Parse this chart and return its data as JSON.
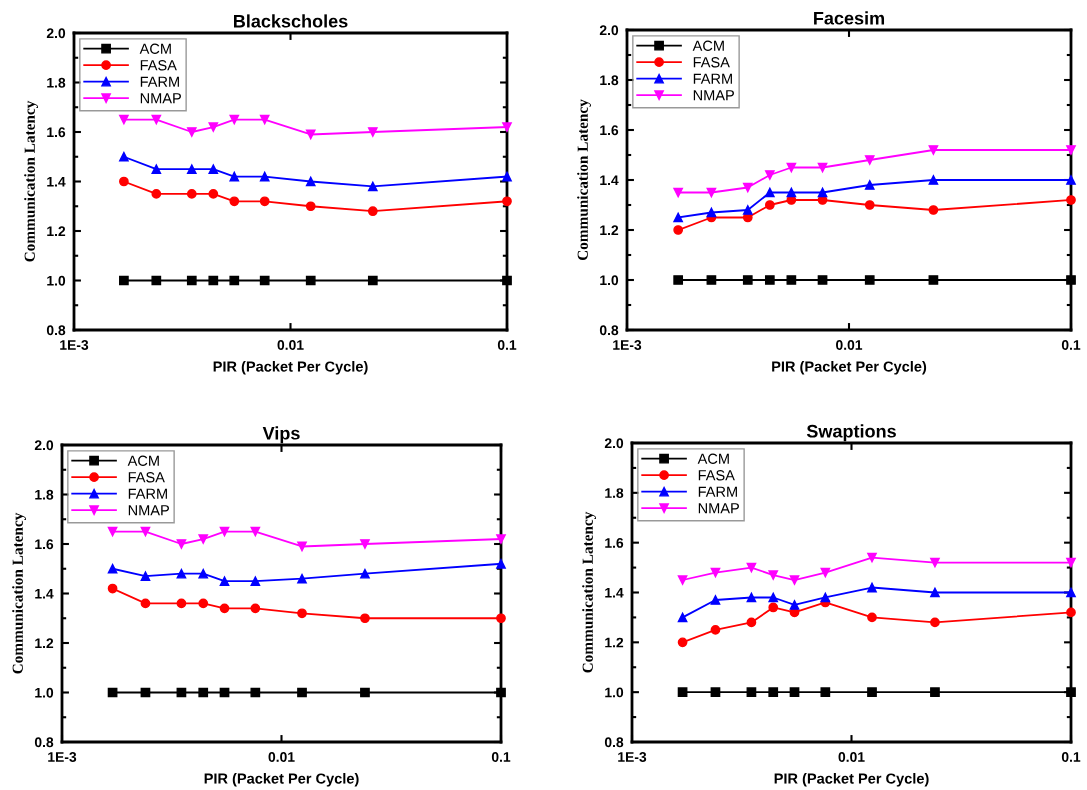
{
  "chart_data": [
    {
      "type": "line",
      "title": "Blackscholes",
      "xlabel": "PIR (Packet Per Cycle)",
      "ylabel": "Communication Latency",
      "log": "x",
      "legend": "top left",
      "grid": false,
      "xlim": [
        0.001,
        0.1
      ],
      "ylim": [
        0.8,
        2.0
      ],
      "xticks": [
        {
          "value": 0.001,
          "label": "1E-3"
        },
        {
          "value": 0.01,
          "label": "0.01"
        },
        {
          "value": 0.1,
          "label": "0.1"
        }
      ],
      "yticks": [
        {
          "value": 0.8,
          "label": "0.8"
        },
        {
          "value": 1.0,
          "label": "1.0"
        },
        1.2,
        1.4,
        1.6,
        1.8,
        {
          "value": 2.0,
          "label": "2.0"
        }
      ],
      "x": [
        0.0017,
        0.0024,
        0.0035,
        0.0044,
        0.0055,
        0.0076,
        0.0124,
        0.024,
        0.1
      ],
      "series": [
        {
          "name": "ACM",
          "color": "#000000",
          "marker": "square",
          "values": [
            1.0,
            1.0,
            1.0,
            1.0,
            1.0,
            1.0,
            1.0,
            1.0,
            1.0
          ]
        },
        {
          "name": "FASA",
          "color": "#ff0000",
          "marker": "circle",
          "values": [
            1.4,
            1.35,
            1.35,
            1.35,
            1.32,
            1.32,
            1.3,
            1.28,
            1.32
          ]
        },
        {
          "name": "FARM",
          "color": "#0000ff",
          "marker": "triangle",
          "values": [
            1.5,
            1.45,
            1.45,
            1.45,
            1.42,
            1.42,
            1.4,
            1.38,
            1.42
          ]
        },
        {
          "name": "NMAP",
          "color": "#ff00ff",
          "marker": "triangle_down",
          "values": [
            1.65,
            1.65,
            1.6,
            1.62,
            1.65,
            1.65,
            1.59,
            1.6,
            1.62
          ]
        }
      ]
    },
    {
      "type": "line",
      "title": "Facesim",
      "xlabel": "PIR (Packet Per Cycle)",
      "ylabel": "Communication Latency",
      "log": "x",
      "legend": "top left",
      "grid": false,
      "xlim": [
        0.001,
        0.1
      ],
      "ylim": [
        0.8,
        2.0
      ],
      "xticks": [
        {
          "value": 0.001,
          "label": "1E-3"
        },
        {
          "value": 0.01,
          "label": "0.01"
        },
        {
          "value": 0.1,
          "label": "0.1"
        }
      ],
      "yticks": [
        {
          "value": 0.8,
          "label": "0.8"
        },
        {
          "value": 1.0,
          "label": "1.0"
        },
        1.2,
        1.4,
        1.6,
        1.8,
        {
          "value": 2.0,
          "label": "2.0"
        }
      ],
      "x": [
        0.0017,
        0.0024,
        0.0035,
        0.0044,
        0.0055,
        0.0076,
        0.0124,
        0.024,
        0.1
      ],
      "series": [
        {
          "name": "ACM",
          "color": "#000000",
          "marker": "square",
          "values": [
            1.0,
            1.0,
            1.0,
            1.0,
            1.0,
            1.0,
            1.0,
            1.0,
            1.0
          ]
        },
        {
          "name": "FASA",
          "color": "#ff0000",
          "marker": "circle",
          "values": [
            1.2,
            1.25,
            1.25,
            1.3,
            1.32,
            1.32,
            1.3,
            1.28,
            1.32
          ]
        },
        {
          "name": "FARM",
          "color": "#0000ff",
          "marker": "triangle",
          "values": [
            1.25,
            1.27,
            1.28,
            1.35,
            1.35,
            1.35,
            1.38,
            1.4,
            1.4
          ]
        },
        {
          "name": "NMAP",
          "color": "#ff00ff",
          "marker": "triangle_down",
          "values": [
            1.35,
            1.35,
            1.37,
            1.42,
            1.45,
            1.45,
            1.48,
            1.52,
            1.52
          ]
        }
      ]
    },
    {
      "type": "line",
      "title": "Vips",
      "xlabel": "PIR (Packet Per Cycle)",
      "ylabel": "Communication Latency",
      "log": "x",
      "legend": "top left",
      "grid": false,
      "xlim": [
        0.001,
        0.1
      ],
      "ylim": [
        0.8,
        2.0
      ],
      "xticks": [
        {
          "value": 0.001,
          "label": "1E-3"
        },
        {
          "value": 0.01,
          "label": "0.01"
        },
        {
          "value": 0.1,
          "label": "0.1"
        }
      ],
      "yticks": [
        {
          "value": 0.8,
          "label": "0.8"
        },
        {
          "value": 1.0,
          "label": "1.0"
        },
        1.2,
        1.4,
        1.6,
        1.8,
        {
          "value": 2.0,
          "label": "2.0"
        }
      ],
      "x": [
        0.0017,
        0.0024,
        0.0035,
        0.0044,
        0.0055,
        0.0076,
        0.0124,
        0.024,
        0.1
      ],
      "series": [
        {
          "name": "ACM",
          "color": "#000000",
          "marker": "square",
          "values": [
            1.0,
            1.0,
            1.0,
            1.0,
            1.0,
            1.0,
            1.0,
            1.0,
            1.0
          ]
        },
        {
          "name": "FASA",
          "color": "#ff0000",
          "marker": "circle",
          "values": [
            1.42,
            1.36,
            1.36,
            1.36,
            1.34,
            1.34,
            1.32,
            1.3,
            1.3
          ]
        },
        {
          "name": "FARM",
          "color": "#0000ff",
          "marker": "triangle",
          "values": [
            1.5,
            1.47,
            1.48,
            1.48,
            1.45,
            1.45,
            1.46,
            1.48,
            1.52
          ]
        },
        {
          "name": "NMAP",
          "color": "#ff00ff",
          "marker": "triangle_down",
          "values": [
            1.65,
            1.65,
            1.6,
            1.62,
            1.65,
            1.65,
            1.59,
            1.6,
            1.62
          ]
        }
      ]
    },
    {
      "type": "line",
      "title": "Swaptions",
      "xlabel": "PIR (Packet Per Cycle)",
      "ylabel": "Communication Latency",
      "log": "x",
      "legend": "top left",
      "grid": false,
      "xlim": [
        0.001,
        0.1
      ],
      "ylim": [
        0.8,
        2.0
      ],
      "xticks": [
        {
          "value": 0.001,
          "label": "1E-3"
        },
        {
          "value": 0.01,
          "label": "0.01"
        },
        {
          "value": 0.1,
          "label": "0.1"
        }
      ],
      "yticks": [
        {
          "value": 0.8,
          "label": "0.8"
        },
        {
          "value": 1.0,
          "label": "1.0"
        },
        1.2,
        1.4,
        1.6,
        1.8,
        {
          "value": 2.0,
          "label": "2.0"
        }
      ],
      "x": [
        0.0017,
        0.0024,
        0.0035,
        0.0044,
        0.0055,
        0.0076,
        0.0124,
        0.024,
        0.1
      ],
      "series": [
        {
          "name": "ACM",
          "color": "#000000",
          "marker": "square",
          "values": [
            1.0,
            1.0,
            1.0,
            1.0,
            1.0,
            1.0,
            1.0,
            1.0,
            1.0
          ]
        },
        {
          "name": "FASA",
          "color": "#ff0000",
          "marker": "circle",
          "values": [
            1.2,
            1.25,
            1.28,
            1.34,
            1.32,
            1.36,
            1.3,
            1.28,
            1.32
          ]
        },
        {
          "name": "FARM",
          "color": "#0000ff",
          "marker": "triangle",
          "values": [
            1.3,
            1.37,
            1.38,
            1.38,
            1.35,
            1.38,
            1.42,
            1.4,
            1.4
          ]
        },
        {
          "name": "NMAP",
          "color": "#ff00ff",
          "marker": "triangle_down",
          "values": [
            1.45,
            1.48,
            1.5,
            1.47,
            1.45,
            1.48,
            1.54,
            1.52,
            1.52
          ]
        }
      ]
    }
  ]
}
